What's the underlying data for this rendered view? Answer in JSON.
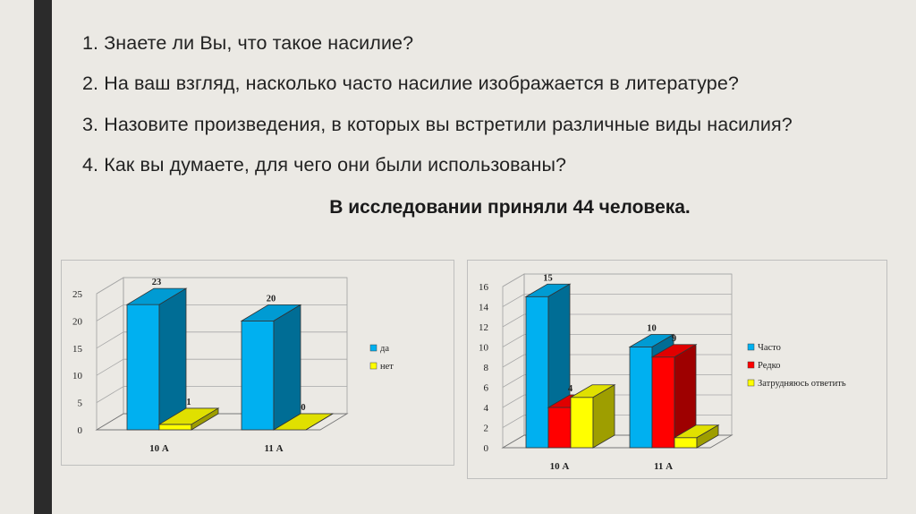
{
  "slide": {
    "questions": [
      "1. Знаете ли Вы, что такое насилие?",
      "2. На ваш взгляд, насколько часто насилие изображается в литературе?",
      "3. Назовите произведения, в которых вы встретили различные виды насилия?",
      "4. Как вы думаете, для чего они были использованы?"
    ],
    "subtitle": "В исследовании приняли 44 человека."
  },
  "colors": {
    "left_bar": "#2b2b2b",
    "background": "#ebe9e4"
  },
  "chart_data": [
    {
      "type": "bar",
      "categories": [
        "10 А",
        "11 А"
      ],
      "series": [
        {
          "name": "да",
          "values": [
            23,
            20
          ],
          "color": "#00b0f0"
        },
        {
          "name": "нет",
          "values": [
            1,
            0
          ],
          "color": "#ffff00"
        }
      ],
      "yticks": [
        0,
        5,
        10,
        15,
        20,
        25
      ],
      "ylim": [
        0,
        25
      ],
      "grid": true,
      "legend": "right",
      "data_labels": true
    },
    {
      "type": "bar",
      "categories": [
        "10 А",
        "11 А"
      ],
      "series": [
        {
          "name": "Часто",
          "values": [
            15,
            10
          ],
          "color": "#00b0f0"
        },
        {
          "name": "Редко",
          "values": [
            4,
            9
          ],
          "color": "#ff0000"
        },
        {
          "name": "Затрудняюсь ответить",
          "values": [
            5,
            1
          ],
          "color": "#ffff00"
        }
      ],
      "yticks": [
        0,
        2,
        4,
        6,
        8,
        10,
        12,
        14,
        16
      ],
      "ylim": [
        0,
        16
      ],
      "grid": true,
      "legend": "right",
      "data_labels": true,
      "labeled_series": [
        0,
        1
      ]
    }
  ]
}
